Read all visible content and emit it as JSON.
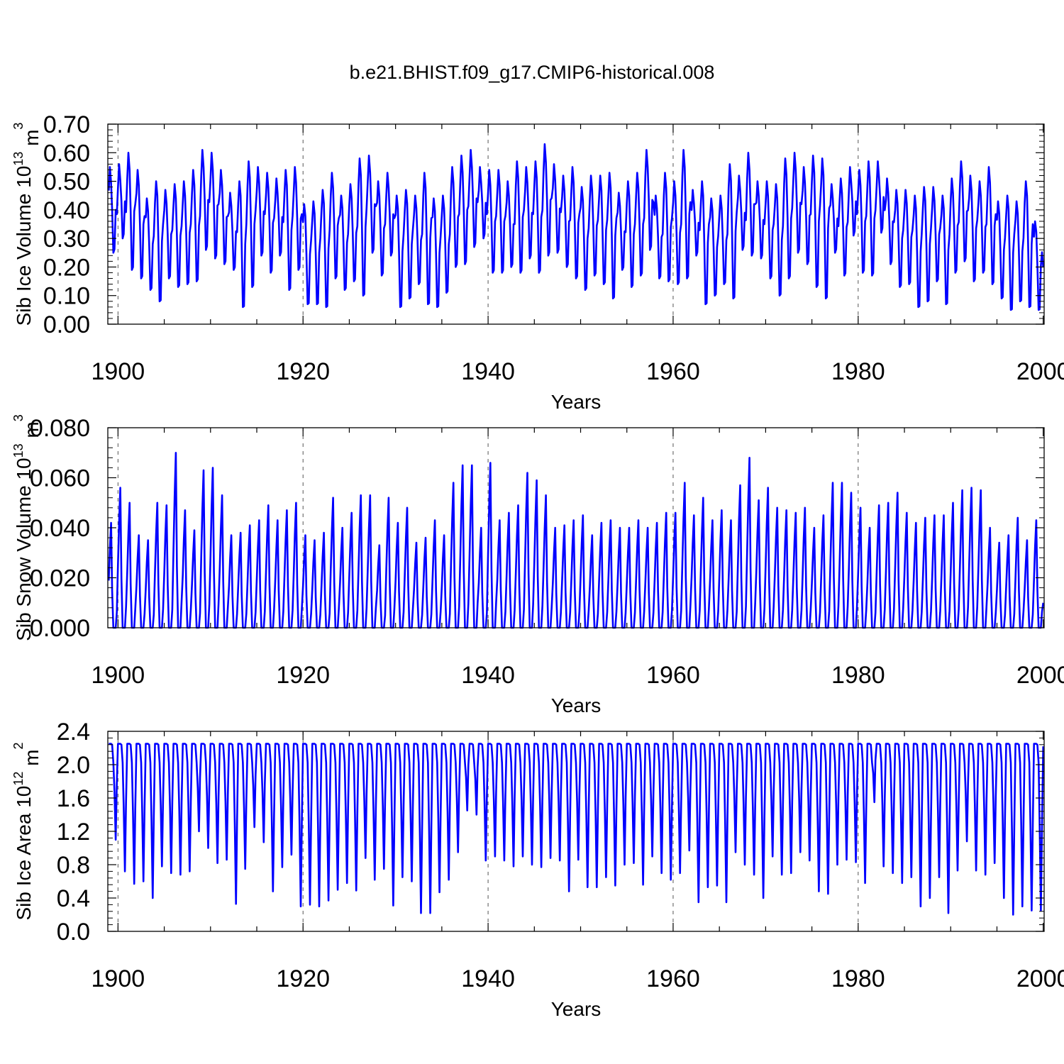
{
  "title": "b.e21.BHIST.f09_g17.CMIP6-historical.008",
  "colors": {
    "series": "#0000ff",
    "axis": "#000000",
    "refline": "#555555"
  },
  "chart_data": [
    {
      "type": "line",
      "name": "sib-ice-volume",
      "ylabel_main": "Sib Ice Volume 10",
      "ylabel_exp": "13",
      "ylabel_unit": " m",
      "ylabel_unit_exp": "3",
      "xlabel": "Years",
      "xlim": [
        1898.9,
        2000.1
      ],
      "ylim": [
        0,
        0.7
      ],
      "xticks": [
        1900,
        1920,
        1940,
        1960,
        1980,
        2000
      ],
      "xtick_labels": [
        "1900",
        "1920",
        "1940",
        "1960",
        "1980",
        "2000"
      ],
      "yticks": [
        0,
        0.1,
        0.2,
        0.3,
        0.4,
        0.5,
        0.6,
        0.7
      ],
      "ytick_labels": [
        "0.00",
        "0.10",
        "0.20",
        "0.30",
        "0.40",
        "0.50",
        "0.60",
        "0.70"
      ],
      "reference_lines": [
        1900,
        1920,
        1940,
        1960,
        1980
      ],
      "series": [
        {
          "name": "Sib Ice Volume",
          "years": [
            1899,
            1900,
            1901,
            1902,
            1903,
            1904,
            1905,
            1906,
            1907,
            1908,
            1909,
            1910,
            1911,
            1912,
            1913,
            1914,
            1915,
            1916,
            1917,
            1918,
            1919,
            1920,
            1921,
            1922,
            1923,
            1924,
            1925,
            1926,
            1927,
            1928,
            1929,
            1930,
            1931,
            1932,
            1933,
            1934,
            1935,
            1936,
            1937,
            1938,
            1939,
            1940,
            1941,
            1942,
            1943,
            1944,
            1945,
            1946,
            1947,
            1948,
            1949,
            1950,
            1951,
            1952,
            1953,
            1954,
            1955,
            1956,
            1957,
            1958,
            1959,
            1960,
            1961,
            1962,
            1963,
            1964,
            1965,
            1966,
            1967,
            1968,
            1969,
            1970,
            1971,
            1972,
            1973,
            1974,
            1975,
            1976,
            1977,
            1978,
            1979,
            1980,
            1981,
            1982,
            1983,
            1984,
            1985,
            1986,
            1987,
            1988,
            1989,
            1990,
            1991,
            1992,
            1993,
            1994,
            1995,
            1996,
            1997,
            1998,
            1999
          ],
          "annual_max": [
            0.55,
            0.56,
            0.6,
            0.54,
            0.44,
            0.5,
            0.47,
            0.49,
            0.5,
            0.54,
            0.61,
            0.6,
            0.54,
            0.46,
            0.5,
            0.57,
            0.55,
            0.53,
            0.51,
            0.54,
            0.55,
            0.42,
            0.43,
            0.47,
            0.53,
            0.45,
            0.49,
            0.58,
            0.59,
            0.5,
            0.53,
            0.45,
            0.47,
            0.45,
            0.53,
            0.44,
            0.45,
            0.55,
            0.59,
            0.61,
            0.55,
            0.54,
            0.54,
            0.5,
            0.57,
            0.55,
            0.57,
            0.63,
            0.56,
            0.52,
            0.55,
            0.48,
            0.52,
            0.52,
            0.53,
            0.46,
            0.5,
            0.53,
            0.61,
            0.45,
            0.53,
            0.5,
            0.61,
            0.47,
            0.5,
            0.44,
            0.45,
            0.56,
            0.52,
            0.6,
            0.5,
            0.5,
            0.49,
            0.58,
            0.6,
            0.55,
            0.59,
            0.58,
            0.49,
            0.51,
            0.55,
            0.54,
            0.57,
            0.57,
            0.51,
            0.47,
            0.47,
            0.45,
            0.48,
            0.48,
            0.45,
            0.51,
            0.57,
            0.52,
            0.5,
            0.55,
            0.43,
            0.45,
            0.43,
            0.5,
            0.36
          ],
          "annual_min": [
            0.25,
            0.3,
            0.19,
            0.16,
            0.12,
            0.08,
            0.16,
            0.13,
            0.14,
            0.15,
            0.26,
            0.23,
            0.21,
            0.19,
            0.06,
            0.13,
            0.24,
            0.18,
            0.24,
            0.12,
            0.19,
            0.07,
            0.07,
            0.06,
            0.16,
            0.12,
            0.15,
            0.1,
            0.25,
            0.17,
            0.24,
            0.06,
            0.09,
            0.14,
            0.07,
            0.06,
            0.11,
            0.2,
            0.21,
            0.27,
            0.3,
            0.18,
            0.18,
            0.2,
            0.18,
            0.23,
            0.18,
            0.24,
            0.25,
            0.2,
            0.16,
            0.12,
            0.17,
            0.14,
            0.09,
            0.19,
            0.13,
            0.17,
            0.26,
            0.16,
            0.15,
            0.14,
            0.16,
            0.24,
            0.07,
            0.1,
            0.14,
            0.09,
            0.26,
            0.24,
            0.23,
            0.16,
            0.1,
            0.16,
            0.25,
            0.21,
            0.13,
            0.09,
            0.25,
            0.17,
            0.31,
            0.18,
            0.17,
            0.32,
            0.21,
            0.13,
            0.14,
            0.06,
            0.08,
            0.15,
            0.07,
            0.18,
            0.22,
            0.15,
            0.18,
            0.14,
            0.09,
            0.05,
            0.08,
            0.06,
            0.05
          ],
          "end_value": 0.2
        }
      ]
    },
    {
      "type": "line",
      "name": "sib-snow-volume",
      "ylabel_main": "Sib Snow Volume 10",
      "ylabel_exp": "13",
      "ylabel_unit": " m",
      "ylabel_unit_exp": "3",
      "xlabel": "Years",
      "xlim": [
        1898.9,
        2000.1
      ],
      "ylim": [
        0,
        0.08
      ],
      "xticks": [
        1900,
        1920,
        1940,
        1960,
        1980,
        2000
      ],
      "xtick_labels": [
        "1900",
        "1920",
        "1940",
        "1960",
        "1980",
        "2000"
      ],
      "yticks": [
        0,
        0.02,
        0.04,
        0.06,
        0.08
      ],
      "ytick_labels": [
        "0.000",
        "0.020",
        "0.040",
        "0.060",
        "0.080"
      ],
      "reference_lines": [
        1900,
        1920,
        1940,
        1960,
        1980
      ],
      "series": [
        {
          "name": "Sib Snow Volume",
          "years": [
            1899,
            1900,
            1901,
            1902,
            1903,
            1904,
            1905,
            1906,
            1907,
            1908,
            1909,
            1910,
            1911,
            1912,
            1913,
            1914,
            1915,
            1916,
            1917,
            1918,
            1919,
            1920,
            1921,
            1922,
            1923,
            1924,
            1925,
            1926,
            1927,
            1928,
            1929,
            1930,
            1931,
            1932,
            1933,
            1934,
            1935,
            1936,
            1937,
            1938,
            1939,
            1940,
            1941,
            1942,
            1943,
            1944,
            1945,
            1946,
            1947,
            1948,
            1949,
            1950,
            1951,
            1952,
            1953,
            1954,
            1955,
            1956,
            1957,
            1958,
            1959,
            1960,
            1961,
            1962,
            1963,
            1964,
            1965,
            1966,
            1967,
            1968,
            1969,
            1970,
            1971,
            1972,
            1973,
            1974,
            1975,
            1976,
            1977,
            1978,
            1979,
            1980,
            1981,
            1982,
            1983,
            1984,
            1985,
            1986,
            1987,
            1988,
            1989,
            1990,
            1991,
            1992,
            1993,
            1994,
            1995,
            1996,
            1997,
            1998,
            1999
          ],
          "annual_max": [
            0.042,
            0.056,
            0.05,
            0.037,
            0.035,
            0.05,
            0.049,
            0.07,
            0.047,
            0.039,
            0.063,
            0.064,
            0.053,
            0.037,
            0.038,
            0.041,
            0.043,
            0.049,
            0.043,
            0.047,
            0.05,
            0.037,
            0.035,
            0.038,
            0.052,
            0.04,
            0.046,
            0.053,
            0.053,
            0.033,
            0.052,
            0.042,
            0.048,
            0.034,
            0.036,
            0.043,
            0.037,
            0.058,
            0.065,
            0.065,
            0.04,
            0.066,
            0.043,
            0.046,
            0.049,
            0.062,
            0.059,
            0.053,
            0.04,
            0.041,
            0.043,
            0.045,
            0.037,
            0.042,
            0.043,
            0.04,
            0.04,
            0.043,
            0.04,
            0.042,
            0.046,
            0.046,
            0.058,
            0.045,
            0.052,
            0.043,
            0.047,
            0.043,
            0.057,
            0.068,
            0.051,
            0.056,
            0.048,
            0.047,
            0.046,
            0.048,
            0.04,
            0.045,
            0.058,
            0.058,
            0.054,
            0.048,
            0.04,
            0.049,
            0.05,
            0.054,
            0.046,
            0.042,
            0.044,
            0.045,
            0.045,
            0.05,
            0.055,
            0.056,
            0.055,
            0.04,
            0.034,
            0.037,
            0.044,
            0.035,
            0.043
          ],
          "annual_min": [
            0.0,
            0.0,
            0.0,
            0.0,
            0.0,
            0.0,
            0.0,
            0.0,
            0.0,
            0.0,
            0.0,
            0.0,
            0.0,
            0.0,
            0.0,
            0.0,
            0.0,
            0.0,
            0.0,
            0.0,
            0.0,
            0.0,
            0.0,
            0.0,
            0.0,
            0.0,
            0.0,
            0.0,
            0.0,
            0.0,
            0.0,
            0.0,
            0.0,
            0.0,
            0.0,
            0.0,
            0.0,
            0.0,
            0.0,
            0.0,
            0.0,
            0.0,
            0.0,
            0.0,
            0.0,
            0.0,
            0.0,
            0.0,
            0.0,
            0.0,
            0.0,
            0.0,
            0.0,
            0.0,
            0.0,
            0.0,
            0.0,
            0.0,
            0.0,
            0.0,
            0.0,
            0.0,
            0.0,
            0.0,
            0.0,
            0.0,
            0.0,
            0.0,
            0.0,
            0.0,
            0.0,
            0.0,
            0.0,
            0.0,
            0.0,
            0.0,
            0.0,
            0.0,
            0.0,
            0.0,
            0.0,
            0.0,
            0.0,
            0.0,
            0.0,
            0.0,
            0.0,
            0.0,
            0.0,
            0.0,
            0.0,
            0.0,
            0.0,
            0.0,
            0.0,
            0.0,
            0.0,
            0.0,
            0.0,
            0.0,
            0.0
          ],
          "end_value": 0.01
        }
      ]
    },
    {
      "type": "line",
      "name": "sib-ice-area",
      "ylabel_main": "Sib Ice Area 10",
      "ylabel_exp": "12",
      "ylabel_unit": " m",
      "ylabel_unit_exp": "2",
      "xlabel": "Years",
      "xlim": [
        1898.9,
        2000.1
      ],
      "ylim": [
        0,
        2.4
      ],
      "xticks": [
        1900,
        1920,
        1940,
        1960,
        1980,
        2000
      ],
      "xtick_labels": [
        "1900",
        "1920",
        "1940",
        "1960",
        "1980",
        "2000"
      ],
      "yticks": [
        0,
        0.4,
        0.8,
        1.2,
        1.6,
        2.0,
        2.4
      ],
      "ytick_labels": [
        "0.0",
        "0.4",
        "0.8",
        "1.2",
        "1.6",
        "2.0",
        "2.4"
      ],
      "reference_lines": [
        1900,
        1920,
        1940,
        1960,
        1980
      ],
      "series": [
        {
          "name": "Sib Ice Area",
          "years": [
            1899,
            1900,
            1901,
            1902,
            1903,
            1904,
            1905,
            1906,
            1907,
            1908,
            1909,
            1910,
            1911,
            1912,
            1913,
            1914,
            1915,
            1916,
            1917,
            1918,
            1919,
            1920,
            1921,
            1922,
            1923,
            1924,
            1925,
            1926,
            1927,
            1928,
            1929,
            1930,
            1931,
            1932,
            1933,
            1934,
            1935,
            1936,
            1937,
            1938,
            1939,
            1940,
            1941,
            1942,
            1943,
            1944,
            1945,
            1946,
            1947,
            1948,
            1949,
            1950,
            1951,
            1952,
            1953,
            1954,
            1955,
            1956,
            1957,
            1958,
            1959,
            1960,
            1961,
            1962,
            1963,
            1964,
            1965,
            1966,
            1967,
            1968,
            1969,
            1970,
            1971,
            1972,
            1973,
            1974,
            1975,
            1976,
            1977,
            1978,
            1979,
            1980,
            1981,
            1982,
            1983,
            1984,
            1985,
            1986,
            1987,
            1988,
            1989,
            1990,
            1991,
            1992,
            1993,
            1994,
            1995,
            1996,
            1997,
            1998,
            1999
          ],
          "annual_max": [
            2.25,
            2.25,
            2.25,
            2.25,
            2.25,
            2.25,
            2.25,
            2.25,
            2.25,
            2.25,
            2.25,
            2.25,
            2.25,
            2.25,
            2.25,
            2.25,
            2.25,
            2.25,
            2.25,
            2.25,
            2.25,
            2.25,
            2.25,
            2.25,
            2.25,
            2.25,
            2.25,
            2.25,
            2.25,
            2.25,
            2.25,
            2.25,
            2.25,
            2.25,
            2.25,
            2.25,
            2.25,
            2.25,
            2.25,
            2.25,
            2.25,
            2.25,
            2.25,
            2.25,
            2.25,
            2.25,
            2.25,
            2.25,
            2.25,
            2.25,
            2.25,
            2.25,
            2.25,
            2.25,
            2.25,
            2.25,
            2.25,
            2.25,
            2.25,
            2.25,
            2.25,
            2.25,
            2.25,
            2.25,
            2.25,
            2.25,
            2.25,
            2.25,
            2.25,
            2.25,
            2.25,
            2.25,
            2.25,
            2.25,
            2.25,
            2.25,
            2.25,
            2.25,
            2.25,
            2.25,
            2.25,
            2.25,
            2.25,
            2.25,
            2.25,
            2.25,
            2.25,
            2.25,
            2.25,
            2.25,
            2.25,
            2.25,
            2.25,
            2.25,
            2.25,
            2.25,
            2.25,
            2.25,
            2.25,
            2.25,
            2.25
          ],
          "annual_min": [
            1.1,
            0.72,
            0.57,
            0.6,
            0.4,
            0.78,
            0.7,
            0.68,
            0.72,
            1.2,
            1.0,
            0.82,
            0.86,
            0.33,
            0.75,
            1.25,
            1.07,
            0.48,
            0.77,
            0.92,
            0.3,
            0.32,
            0.3,
            0.37,
            0.5,
            0.58,
            0.49,
            0.88,
            0.62,
            0.75,
            0.31,
            0.65,
            0.6,
            0.22,
            0.22,
            0.47,
            0.62,
            0.95,
            1.45,
            1.4,
            0.85,
            0.9,
            0.85,
            0.78,
            0.9,
            0.8,
            0.77,
            0.88,
            0.85,
            0.48,
            0.86,
            0.53,
            0.53,
            0.65,
            0.55,
            0.8,
            0.82,
            0.56,
            0.9,
            0.7,
            0.62,
            0.7,
            0.97,
            0.35,
            0.53,
            0.55,
            0.35,
            0.95,
            0.8,
            0.68,
            0.4,
            0.9,
            0.68,
            0.7,
            0.95,
            0.85,
            0.48,
            0.45,
            0.8,
            0.86,
            0.83,
            0.58,
            1.55,
            0.78,
            0.7,
            0.58,
            0.65,
            0.3,
            0.4,
            0.65,
            0.22,
            0.73,
            1.08,
            0.73,
            0.68,
            0.82,
            0.4,
            0.2,
            0.3,
            0.25,
            0.25
          ],
          "end_value": 2.22
        }
      ]
    }
  ]
}
